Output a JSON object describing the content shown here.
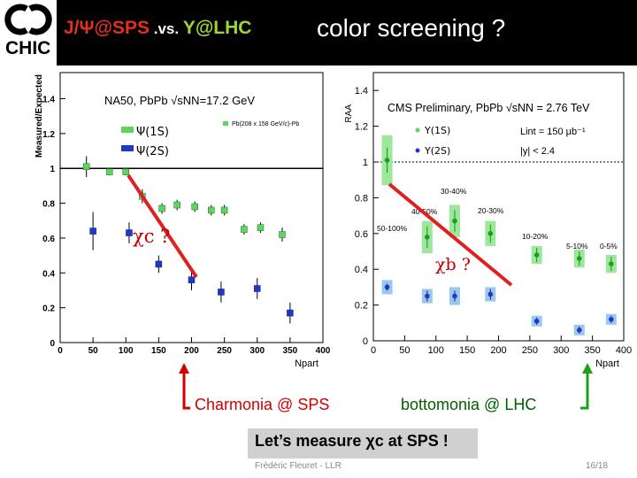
{
  "logo": {
    "text": "CHIC"
  },
  "header": {
    "title_left_a": "J/Ψ@SPS",
    "title_left_b": " .vs. ",
    "title_left_c": "Υ@LHC",
    "title_right": "color screening ?"
  },
  "annotations": {
    "chi_c": "χc ?",
    "chi_b": "χb ?",
    "charmonia": "Charmonia @ SPS",
    "bottomonia": "bottomonia @ LHC",
    "measure": "Let’s measure χc at SPS !"
  },
  "footer": {
    "author": "Frédéric Fleuret - LLR",
    "page": "16/18"
  },
  "colors": {
    "green": "#5cd65c",
    "blue": "#2236c8",
    "red": "#e02020",
    "dark_red": "#c00000",
    "dark_green": "#2a9a2a"
  },
  "chart_data": [
    {
      "type": "scatter",
      "title": "NA50, Pb​Pb √sNN=17.2 GeV",
      "note": "Pb(208 x 158 GeV/c)-Pb",
      "ylabel": "Measured/Expected",
      "xlabel": "Npart",
      "xlim": [
        0,
        400
      ],
      "ylim": [
        0,
        1.55
      ],
      "xticks": [
        0,
        50,
        100,
        150,
        200,
        250,
        300,
        350,
        400
      ],
      "yticks": [
        0,
        0.2,
        0.4,
        0.6,
        0.8,
        1,
        1.2,
        1.4
      ],
      "reference_line": 1,
      "series": [
        {
          "name": "Ψ(1S)",
          "color": "#5cd65c",
          "x": [
            40,
            75,
            100,
            125,
            155,
            178,
            205,
            230,
            250,
            280,
            305,
            338
          ],
          "y": [
            1.01,
            0.98,
            0.98,
            0.84,
            0.77,
            0.79,
            0.78,
            0.76,
            0.76,
            0.65,
            0.66,
            0.62
          ],
          "err": [
            0.06,
            0.02,
            0.02,
            0.04,
            0.03,
            0.03,
            0.03,
            0.03,
            0.03,
            0.03,
            0.03,
            0.04
          ]
        },
        {
          "name": "Ψ(2S)",
          "color": "#2236c8",
          "x": [
            50,
            105,
            150,
            200,
            245,
            300,
            350
          ],
          "y": [
            0.64,
            0.63,
            0.45,
            0.36,
            0.29,
            0.31,
            0.17
          ],
          "err": [
            0.11,
            0.06,
            0.05,
            0.06,
            0.06,
            0.06,
            0.06
          ]
        }
      ]
    },
    {
      "type": "scatter",
      "title": "CMS Preliminary, PbPb √sNN = 2.76 TeV",
      "lumi": "Lint = 150 μb⁻¹",
      "rapidity": "|y| < 2.4",
      "ylabel": "RAA",
      "xlabel": "Npart",
      "xlim": [
        0,
        400
      ],
      "ylim": [
        0,
        1.5
      ],
      "xticks": [
        0,
        50,
        100,
        150,
        200,
        250,
        300,
        350,
        400
      ],
      "yticks": [
        0,
        0.2,
        0.4,
        0.6,
        0.8,
        1,
        1.2,
        1.4
      ],
      "reference_line": 1,
      "centrality_labels": [
        "50-100%",
        "40-50%",
        "30-40%",
        "20-30%",
        "10-20%",
        "5-10%",
        "0-5%"
      ],
      "series": [
        {
          "name": "Υ(1S)",
          "color": "#5cd65c",
          "x": [
            22,
            86,
            130,
            187,
            261,
            329,
            380
          ],
          "y": [
            1.01,
            0.58,
            0.67,
            0.6,
            0.48,
            0.46,
            0.43
          ],
          "err": [
            0.07,
            0.06,
            0.06,
            0.05,
            0.04,
            0.04,
            0.04
          ],
          "sys": [
            0.14,
            0.09,
            0.09,
            0.07,
            0.05,
            0.05,
            0.05
          ]
        },
        {
          "name": "Υ(2S)",
          "color": "#2236c8",
          "x": [
            22,
            86,
            130,
            187,
            261,
            329,
            380
          ],
          "y": [
            0.3,
            0.25,
            0.25,
            0.26,
            0.11,
            0.06,
            0.12
          ],
          "err": [
            0.02,
            0.03,
            0.03,
            0.03,
            0.02,
            0.02,
            0.02
          ],
          "sys": [
            0.04,
            0.04,
            0.05,
            0.04,
            0.03,
            0.03,
            0.03
          ]
        }
      ]
    }
  ]
}
